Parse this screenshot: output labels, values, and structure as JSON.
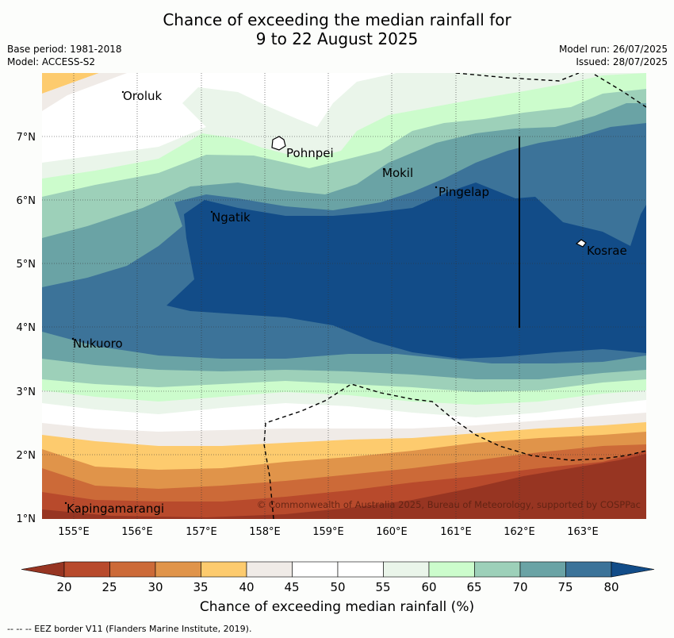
{
  "header": {
    "title_line1": "Chance of exceeding the median rainfall for",
    "title_line2": "9 to 22 August 2025",
    "base_period": "Base period: 1981-2018",
    "model": "Model: ACCESS-S2",
    "model_run": "Model run: 26/07/2025",
    "issued": "Issued: 28/07/2025"
  },
  "map": {
    "lon_ticks": [
      "155°E",
      "156°E",
      "157°E",
      "158°E",
      "159°E",
      "160°E",
      "161°E",
      "162°E",
      "163°E"
    ],
    "lat_ticks": [
      "7°N",
      "6°N",
      "5°N",
      "4°N",
      "3°N",
      "2°N",
      "1°N"
    ],
    "places": [
      {
        "name": "Oroluk"
      },
      {
        "name": "Pohnpei"
      },
      {
        "name": "Mokil"
      },
      {
        "name": "Pingelap"
      },
      {
        "name": "Ngatik"
      },
      {
        "name": "Kosrae"
      },
      {
        "name": "Nukuoro"
      },
      {
        "name": "Kapingamarangi"
      }
    ],
    "copyright": "© Commonwealth of Australia 2025, Bureau of Meteorology, supported by COSPPac"
  },
  "legend": {
    "ticks": [
      "20",
      "25",
      "30",
      "35",
      "40",
      "45",
      "50",
      "55",
      "60",
      "65",
      "70",
      "75",
      "80"
    ],
    "colors": [
      "#973522",
      "#b84a2c",
      "#cc6a38",
      "#e0944a",
      "#fdcb6e",
      "#f0ebe7",
      "#ffffff",
      "#ffffff",
      "#eaf5ea",
      "#ccfccc",
      "#9dd0b9",
      "#6aa3a5",
      "#3c7399",
      "#124c88"
    ],
    "label": "Chance of exceeding median rainfall (%)"
  },
  "footnote": "--  --  -- EEZ border V11 (Flanders Marine Institute, 2019)."
}
